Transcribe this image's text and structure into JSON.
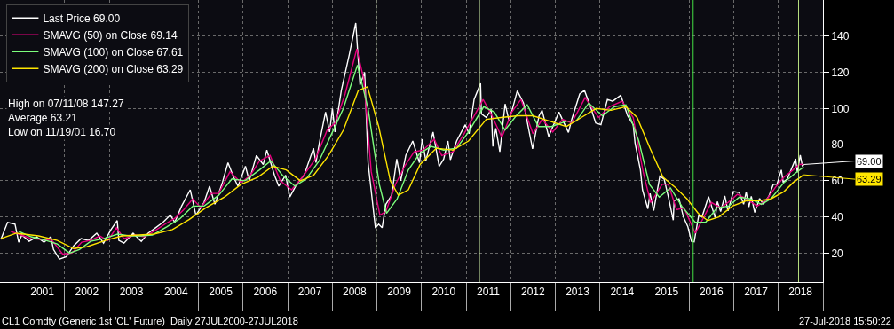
{
  "chart_data": {
    "type": "line",
    "xlim": [
      "2000-07-20",
      "2019-01-01"
    ],
    "xticks": [
      {
        "value": "2001-07-01",
        "label": "2001"
      },
      {
        "value": "2002-07-01",
        "label": "2002"
      },
      {
        "value": "2003-07-01",
        "label": "2003"
      },
      {
        "value": "2004-07-01",
        "label": "2004"
      },
      {
        "value": "2005-07-01",
        "label": "2005"
      },
      {
        "value": "2006-07-01",
        "label": "2006"
      },
      {
        "value": "2007-07-01",
        "label": "2007"
      },
      {
        "value": "2008-07-01",
        "label": "2008"
      },
      {
        "value": "2009-07-01",
        "label": "2009"
      },
      {
        "value": "2010-07-01",
        "label": "2010"
      },
      {
        "value": "2011-07-01",
        "label": "2011"
      },
      {
        "value": "2012-07-01",
        "label": "2012"
      },
      {
        "value": "2013-07-01",
        "label": "2013"
      },
      {
        "value": "2014-07-01",
        "label": "2014"
      },
      {
        "value": "2015-07-01",
        "label": "2015"
      },
      {
        "value": "2016-07-01",
        "label": "2016"
      },
      {
        "value": "2017-07-01",
        "label": "2017"
      },
      {
        "value": "2018-07-01",
        "label": "2018"
      }
    ],
    "ylim": [
      4,
      160
    ],
    "yticks": [
      20,
      40,
      60,
      80,
      100,
      120,
      140
    ],
    "grid": true,
    "legend": "top left",
    "marker": "none",
    "line_style": "solid",
    "series": [
      {
        "name": "Last Price 69.00",
        "color": "#ffffff",
        "x": [
          "2000-07-27",
          "2000-09-20",
          "2000-11-20",
          "2000-12-20",
          "2001-01-15",
          "2001-03-15",
          "2001-05-15",
          "2001-07-15",
          "2001-09-10",
          "2001-10-01",
          "2001-11-19",
          "2002-01-15",
          "2002-03-15",
          "2002-05-15",
          "2002-07-15",
          "2002-09-20",
          "2002-11-15",
          "2003-01-15",
          "2003-03-07",
          "2003-03-20",
          "2003-05-01",
          "2003-07-15",
          "2003-09-20",
          "2003-11-15",
          "2004-01-15",
          "2004-03-15",
          "2004-05-15",
          "2004-06-20",
          "2004-08-15",
          "2004-10-25",
          "2004-12-10",
          "2005-02-15",
          "2005-04-01",
          "2005-05-15",
          "2005-07-15",
          "2005-08-30",
          "2005-10-15",
          "2005-11-20",
          "2006-01-20",
          "2006-02-20",
          "2006-04-20",
          "2006-06-15",
          "2006-07-14",
          "2006-09-15",
          "2006-10-20",
          "2006-12-15",
          "2007-01-18",
          "2007-03-15",
          "2007-05-15",
          "2007-07-31",
          "2007-08-20",
          "2007-09-20",
          "2007-11-07",
          "2007-12-10",
          "2008-01-02",
          "2008-01-23",
          "2008-03-15",
          "2008-05-20",
          "2008-07-11",
          "2008-08-15",
          "2008-09-22",
          "2008-10-20",
          "2008-12-19",
          "2009-01-15",
          "2009-02-12",
          "2009-03-15",
          "2009-05-01",
          "2009-06-12",
          "2009-07-14",
          "2009-08-25",
          "2009-10-21",
          "2009-12-15",
          "2010-01-06",
          "2010-02-05",
          "2010-04-05",
          "2010-05-25",
          "2010-07-01",
          "2010-08-05",
          "2010-08-25",
          "2010-10-15",
          "2010-12-25",
          "2011-01-25",
          "2011-03-07",
          "2011-04-29",
          "2011-05-06",
          "2011-06-15",
          "2011-07-25",
          "2011-08-08",
          "2011-09-01",
          "2011-10-04",
          "2011-11-16",
          "2011-12-19",
          "2012-02-24",
          "2012-04-15",
          "2012-06-28",
          "2012-08-20",
          "2012-09-14",
          "2012-11-07",
          "2013-01-30",
          "2013-04-18",
          "2013-05-15",
          "2013-07-19",
          "2013-08-27",
          "2013-10-15",
          "2013-11-27",
          "2014-01-09",
          "2014-03-03",
          "2014-04-15",
          "2014-06-20",
          "2014-08-15",
          "2014-09-30",
          "2014-10-15",
          "2014-11-28",
          "2014-12-15",
          "2015-01-28",
          "2015-02-15",
          "2015-03-17",
          "2015-05-06",
          "2015-06-10",
          "2015-07-15",
          "2015-08-24",
          "2015-08-31",
          "2015-10-10",
          "2015-11-15",
          "2015-12-21",
          "2016-01-20",
          "2016-02-11",
          "2016-03-20",
          "2016-04-15",
          "2016-06-08",
          "2016-08-02",
          "2016-08-19",
          "2016-09-15",
          "2016-10-19",
          "2016-11-14",
          "2016-12-28",
          "2017-02-15",
          "2017-03-22",
          "2017-04-12",
          "2017-05-04",
          "2017-05-24",
          "2017-06-21",
          "2017-07-31",
          "2017-08-31",
          "2017-10-15",
          "2017-11-20",
          "2017-12-20",
          "2018-01-25",
          "2018-02-09",
          "2018-03-15",
          "2018-05-22",
          "2018-06-05",
          "2018-06-29",
          "2018-07-17",
          "2018-07-27"
        ],
        "values": [
          27.5,
          37,
          36,
          26,
          30,
          26.5,
          29,
          26,
          29,
          22,
          16.7,
          18,
          24,
          28,
          27,
          31,
          25.5,
          33,
          38,
          27,
          25.5,
          31,
          26.5,
          31,
          34,
          37,
          41,
          37,
          46,
          55,
          41,
          48,
          57,
          47,
          59,
          70,
          62,
          57,
          68,
          60,
          74,
          69,
          77,
          63,
          57,
          63,
          51,
          58,
          63,
          78,
          70,
          82,
          98,
          87,
          100,
          87,
          110,
          130,
          147.27,
          113,
          120,
          70,
          33.9,
          36,
          34,
          47,
          52,
          72,
          60,
          74,
          82,
          70,
          83,
          71,
          87,
          68,
          72,
          82,
          71.6,
          82,
          91,
          86,
          105,
          113.9,
          97,
          95,
          99.5,
          79,
          89,
          76,
          102.5,
          93,
          109.8,
          103,
          77.7,
          96,
          99,
          84.5,
          98,
          86.7,
          94,
          108,
          110,
          101,
          92,
          91,
          105,
          104,
          107.3,
          96,
          91,
          81,
          66,
          55,
          44.5,
          53,
          43.5,
          62.5,
          61,
          51,
          38.2,
          49,
          50,
          40,
          34.7,
          26.5,
          26.2,
          41,
          40,
          51.2,
          39.5,
          48.5,
          43,
          51.6,
          43.3,
          54,
          53.5,
          47,
          53.8,
          45.5,
          51.4,
          42.5,
          50.2,
          47,
          51.5,
          58,
          58,
          66,
          59,
          61,
          72.2,
          64.7,
          74.2,
          68,
          69.0
        ]
      },
      {
        "name": "SMAVG (50) on Close 69.14",
        "color": "#e6007e",
        "x": [
          "2000-10-15",
          "2001-01-10",
          "2001-04-01",
          "2001-07-01",
          "2001-09-20",
          "2001-12-15",
          "2002-03-01",
          "2002-05-20",
          "2002-08-01",
          "2002-10-15",
          "2002-12-20",
          "2003-03-01",
          "2003-05-01",
          "2003-08-01",
          "2003-10-15",
          "2004-01-01",
          "2004-04-01",
          "2004-06-15",
          "2004-09-01",
          "2004-11-15",
          "2005-01-20",
          "2005-04-15",
          "2005-06-15",
          "2005-09-15",
          "2005-12-15",
          "2006-03-01",
          "2006-05-15",
          "2006-08-10",
          "2006-11-01",
          "2007-02-01",
          "2007-05-01",
          "2007-08-15",
          "2007-11-20",
          "2008-01-25",
          "2008-04-15",
          "2008-07-20",
          "2008-09-15",
          "2008-11-15",
          "2009-01-25",
          "2009-03-15",
          "2009-06-01",
          "2009-08-15",
          "2009-11-01",
          "2010-01-15",
          "2010-04-15",
          "2010-06-15",
          "2010-09-15",
          "2010-12-15",
          "2011-03-25",
          "2011-05-20",
          "2011-08-01",
          "2011-10-20",
          "2012-01-10",
          "2012-03-25",
          "2012-07-01",
          "2012-09-15",
          "2012-12-10",
          "2013-03-01",
          "2013-05-15",
          "2013-09-01",
          "2013-12-20",
          "2014-03-20",
          "2014-07-01",
          "2014-09-30",
          "2014-12-20",
          "2015-02-20",
          "2015-05-25",
          "2015-07-15",
          "2015-09-20",
          "2015-11-20",
          "2016-02-20",
          "2016-05-01",
          "2016-07-01",
          "2016-09-15",
          "2016-11-15",
          "2017-01-30",
          "2017-04-15",
          "2017-07-10",
          "2017-09-20",
          "2017-12-15",
          "2018-02-15",
          "2018-05-01",
          "2018-06-20",
          "2018-07-27"
        ],
        "values": [
          32,
          30,
          28,
          27.5,
          27,
          19.5,
          20,
          26,
          27,
          29.5,
          27,
          34,
          28,
          30,
          29,
          32,
          36,
          39,
          44,
          50,
          45,
          53,
          53,
          65,
          59,
          63,
          71,
          74,
          60,
          55,
          62,
          72,
          88,
          92,
          108,
          133,
          116,
          65,
          41,
          43,
          58,
          68,
          76,
          77,
          83,
          74,
          76,
          86,
          98,
          105,
          96,
          84,
          98,
          105,
          86,
          94,
          87,
          94,
          92,
          106,
          95,
          101,
          104,
          95,
          65,
          48,
          58,
          58,
          44,
          45,
          31,
          40,
          48,
          45,
          48,
          52.5,
          50,
          46,
          49,
          57,
          62,
          66,
          69,
          69.14
        ]
      },
      {
        "name": "SMAVG (100) on Close 67.61",
        "color": "#7dff7d",
        "x": [
          "2000-12-20",
          "2001-04-01",
          "2001-08-01",
          "2001-11-01",
          "2002-02-10",
          "2002-05-01",
          "2002-08-01",
          "2002-11-15",
          "2003-03-10",
          "2003-06-15",
          "2003-09-15",
          "2003-12-20",
          "2004-04-15",
          "2004-08-01",
          "2004-11-15",
          "2005-02-15",
          "2005-06-15",
          "2005-10-01",
          "2006-01-15",
          "2006-05-15",
          "2006-08-15",
          "2006-11-20",
          "2007-03-01",
          "2007-06-01",
          "2007-09-15",
          "2007-12-20",
          "2008-04-01",
          "2008-07-25",
          "2008-10-20",
          "2009-01-20",
          "2009-03-20",
          "2009-06-15",
          "2009-09-15",
          "2009-12-15",
          "2010-03-20",
          "2010-07-01",
          "2010-10-15",
          "2011-01-20",
          "2011-05-25",
          "2011-08-20",
          "2011-11-15",
          "2012-02-15",
          "2012-05-15",
          "2012-08-15",
          "2012-12-01",
          "2013-04-01",
          "2013-06-20",
          "2013-10-01",
          "2014-01-20",
          "2014-05-01",
          "2014-08-01",
          "2014-11-15",
          "2015-02-10",
          "2015-05-01",
          "2015-08-01",
          "2015-11-01",
          "2016-02-20",
          "2016-05-15",
          "2016-08-15",
          "2016-11-20",
          "2017-02-15",
          "2017-05-15",
          "2017-08-15",
          "2017-11-01",
          "2018-02-15",
          "2018-05-15",
          "2018-07-27"
        ],
        "values": [
          32,
          29,
          27,
          25,
          20,
          22,
          26.5,
          28,
          30.5,
          29.5,
          29.5,
          30,
          34.5,
          39,
          46,
          46,
          52,
          61,
          60,
          66,
          71,
          63,
          57,
          61,
          71,
          85,
          100,
          124,
          100,
          58,
          42,
          50,
          66,
          75,
          79,
          77,
          78,
          87,
          101,
          98,
          88,
          96,
          102,
          90,
          90,
          93,
          93,
          103,
          96,
          101,
          102,
          82,
          58,
          51,
          56,
          46,
          37,
          37,
          45,
          46,
          51,
          50,
          47,
          50,
          59,
          64,
          67.61
        ]
      },
      {
        "name": "SMAVG (200) on Close 63.29",
        "color": "#ffe600",
        "x": [
          "2000-07-27",
          "2000-12-01",
          "2001-06-01",
          "2001-11-01",
          "2002-03-15",
          "2002-07-01",
          "2002-12-01",
          "2003-04-15",
          "2003-09-01",
          "2004-01-01",
          "2004-06-01",
          "2004-10-15",
          "2005-03-01",
          "2005-08-01",
          "2005-12-15",
          "2006-05-01",
          "2006-09-01",
          "2006-12-20",
          "2007-04-15",
          "2007-08-01",
          "2007-12-01",
          "2008-04-01",
          "2008-08-01",
          "2008-10-15",
          "2009-01-15",
          "2009-04-20",
          "2009-06-25",
          "2009-09-15",
          "2009-12-20",
          "2010-05-01",
          "2010-09-15",
          "2011-01-20",
          "2011-06-15",
          "2011-10-15",
          "2012-03-01",
          "2012-07-01",
          "2012-11-15",
          "2013-04-01",
          "2013-08-01",
          "2013-12-01",
          "2014-04-01",
          "2014-08-01",
          "2014-11-01",
          "2015-02-15",
          "2015-06-01",
          "2015-09-15",
          "2015-12-15",
          "2016-03-15",
          "2016-06-01",
          "2016-09-01",
          "2016-12-20",
          "2017-04-15",
          "2017-08-01",
          "2017-11-01",
          "2018-02-15",
          "2018-05-01",
          "2018-07-27"
        ],
        "values": [
          28,
          31,
          29.5,
          27,
          22.5,
          23.5,
          27,
          29.5,
          30,
          30.5,
          33,
          38.5,
          45,
          51,
          58,
          62,
          68,
          66,
          60,
          63,
          74,
          88,
          110,
          112,
          90,
          60,
          52,
          55,
          69,
          78,
          77,
          82,
          94,
          95,
          96,
          96,
          93,
          90,
          95,
          100,
          99,
          101,
          95,
          78,
          62,
          56,
          50,
          42,
          38,
          40,
          46,
          49,
          49,
          50,
          54,
          59,
          63.29
        ]
      }
    ],
    "ref_lines": [
      {
        "axis": "x",
        "value": "2008-12-25",
        "color": "#c8e8a0"
      },
      {
        "axis": "x",
        "value": "2011-04-20",
        "color": "#c8e8a0"
      },
      {
        "axis": "x",
        "value": "2016-02-03",
        "color": "#44e044"
      },
      {
        "axis": "x",
        "value": "2018-06-15",
        "color": "#b8e080"
      }
    ],
    "annotations": [
      "High on 07/11/08 147.27",
      "Average 63.21",
      "Low on 11/19/01 16.70",
      {
        "text": "69.00",
        "x": "2018-07-27",
        "y": 69.0
      },
      {
        "text": "63.29",
        "x": "2018-07-27",
        "y": 63.29
      },
      "CL1 Comdty (Generic 1st 'CL' Future)  Daily 27JUL2000-27JUL2018",
      "27-Jul-2018 15:50:22"
    ]
  }
}
